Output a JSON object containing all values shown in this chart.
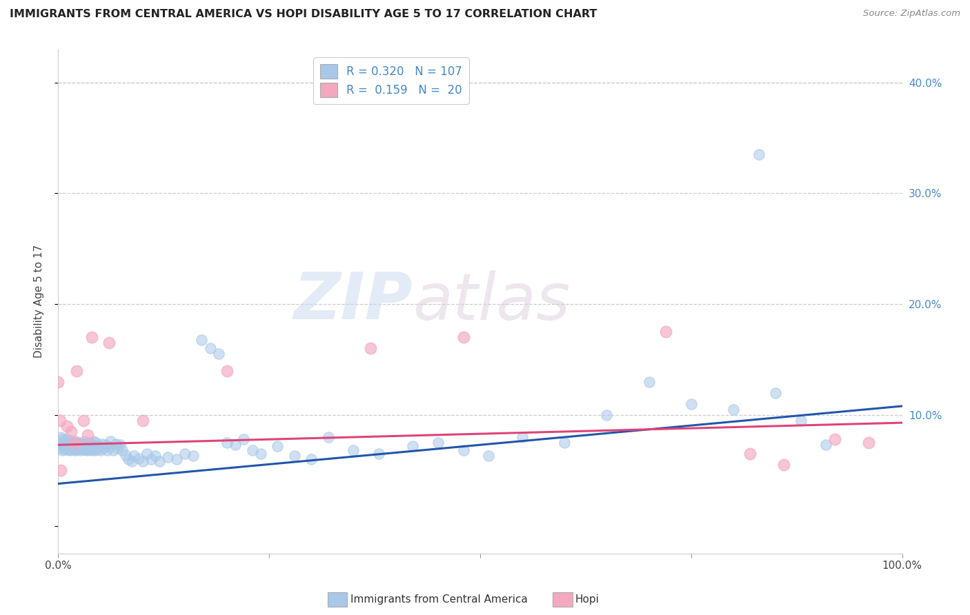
{
  "title": "IMMIGRANTS FROM CENTRAL AMERICA VS HOPI DISABILITY AGE 5 TO 17 CORRELATION CHART",
  "source": "Source: ZipAtlas.com",
  "ylabel": "Disability Age 5 to 17",
  "xlim": [
    0,
    1.0
  ],
  "ylim": [
    -0.025,
    0.43
  ],
  "yticks": [
    0.0,
    0.1,
    0.2,
    0.3,
    0.4
  ],
  "ytick_labels": [
    "",
    "10.0%",
    "20.0%",
    "30.0%",
    "40.0%"
  ],
  "xticks": [
    0.0,
    0.25,
    0.5,
    0.75,
    1.0
  ],
  "xtick_labels": [
    "0.0%",
    "",
    "",
    "",
    "100.0%"
  ],
  "legend_blue_R": "0.320",
  "legend_blue_N": "107",
  "legend_pink_R": "0.159",
  "legend_pink_N": "20",
  "blue_color": "#a8c8e8",
  "pink_color": "#f4a8c0",
  "trend_blue_color": "#2255aa",
  "trend_pink_color": "#dd4477",
  "watermark_zip": "ZIP",
  "watermark_atlas": "atlas",
  "blue_trend_y_start": 0.038,
  "blue_trend_y_end": 0.108,
  "pink_trend_y_start": 0.073,
  "pink_trend_y_end": 0.093,
  "blue_x": [
    0.0,
    0.002,
    0.003,
    0.004,
    0.005,
    0.005,
    0.006,
    0.007,
    0.008,
    0.008,
    0.009,
    0.01,
    0.01,
    0.011,
    0.012,
    0.012,
    0.013,
    0.014,
    0.015,
    0.015,
    0.016,
    0.017,
    0.018,
    0.019,
    0.02,
    0.02,
    0.021,
    0.022,
    0.023,
    0.024,
    0.025,
    0.026,
    0.027,
    0.028,
    0.029,
    0.03,
    0.031,
    0.032,
    0.033,
    0.034,
    0.035,
    0.036,
    0.037,
    0.038,
    0.039,
    0.04,
    0.041,
    0.042,
    0.043,
    0.044,
    0.045,
    0.046,
    0.048,
    0.05,
    0.052,
    0.054,
    0.056,
    0.058,
    0.06,
    0.062,
    0.065,
    0.068,
    0.07,
    0.073,
    0.076,
    0.08,
    0.083,
    0.087,
    0.09,
    0.095,
    0.1,
    0.105,
    0.11,
    0.115,
    0.12,
    0.13,
    0.14,
    0.15,
    0.16,
    0.17,
    0.18,
    0.19,
    0.2,
    0.21,
    0.22,
    0.23,
    0.24,
    0.26,
    0.28,
    0.3,
    0.32,
    0.35,
    0.38,
    0.42,
    0.45,
    0.48,
    0.51,
    0.55,
    0.6,
    0.65,
    0.7,
    0.75,
    0.8,
    0.83,
    0.85,
    0.88,
    0.91
  ],
  "blue_y": [
    0.07,
    0.075,
    0.08,
    0.072,
    0.068,
    0.078,
    0.071,
    0.073,
    0.069,
    0.076,
    0.074,
    0.07,
    0.078,
    0.071,
    0.069,
    0.075,
    0.073,
    0.068,
    0.071,
    0.077,
    0.07,
    0.074,
    0.069,
    0.072,
    0.076,
    0.068,
    0.071,
    0.073,
    0.069,
    0.075,
    0.072,
    0.068,
    0.074,
    0.07,
    0.073,
    0.069,
    0.076,
    0.071,
    0.068,
    0.074,
    0.072,
    0.069,
    0.075,
    0.071,
    0.068,
    0.073,
    0.07,
    0.076,
    0.068,
    0.072,
    0.075,
    0.069,
    0.071,
    0.068,
    0.074,
    0.07,
    0.073,
    0.068,
    0.071,
    0.076,
    0.068,
    0.074,
    0.07,
    0.073,
    0.068,
    0.064,
    0.06,
    0.058,
    0.063,
    0.061,
    0.058,
    0.065,
    0.06,
    0.063,
    0.058,
    0.062,
    0.06,
    0.065,
    0.063,
    0.168,
    0.16,
    0.155,
    0.075,
    0.073,
    0.078,
    0.068,
    0.065,
    0.072,
    0.063,
    0.06,
    0.08,
    0.068,
    0.065,
    0.072,
    0.075,
    0.068,
    0.063,
    0.08,
    0.075,
    0.1,
    0.13,
    0.11,
    0.105,
    0.335,
    0.12,
    0.095,
    0.073
  ],
  "pink_x": [
    0.0,
    0.002,
    0.003,
    0.01,
    0.015,
    0.02,
    0.022,
    0.03,
    0.035,
    0.04,
    0.06,
    0.1,
    0.2,
    0.37,
    0.48,
    0.72,
    0.82,
    0.86,
    0.92,
    0.96
  ],
  "pink_y": [
    0.13,
    0.095,
    0.05,
    0.09,
    0.085,
    0.075,
    0.14,
    0.095,
    0.082,
    0.17,
    0.165,
    0.095,
    0.14,
    0.16,
    0.17,
    0.175,
    0.065,
    0.055,
    0.078,
    0.075
  ]
}
